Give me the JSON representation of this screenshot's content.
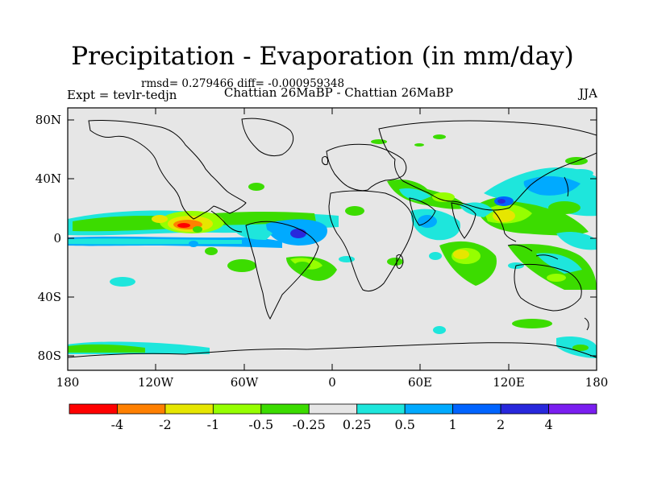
{
  "header": {
    "title": "Precipitation - Evaporation (in mm/day)",
    "stats": "rmsd= 0.279466 diff= -0.000959348",
    "left_label": "Expt = tevlr-tedjn",
    "center_label": "Chattian  26MaBP - Chattian  26MaBP",
    "right_label": "JJA"
  },
  "axes": {
    "lat_labels": [
      "80N",
      "40N",
      "0",
      "40S",
      "80S"
    ],
    "lon_labels": [
      "180",
      "120W",
      "60W",
      "0",
      "60E",
      "120E",
      "180"
    ]
  },
  "colorbar": {
    "colors": [
      "#ff0000",
      "#ff8000",
      "#e6e600",
      "#96ff00",
      "#3cdc00",
      "#e6e6e6",
      "#1ee6dc",
      "#00aaff",
      "#0064ff",
      "#2828dc",
      "#7a1ef0"
    ],
    "labels": [
      "-4",
      "-2",
      "-1",
      "-0.5",
      "-0.25",
      "0.25",
      "0.5",
      "1",
      "2",
      "4"
    ]
  }
}
